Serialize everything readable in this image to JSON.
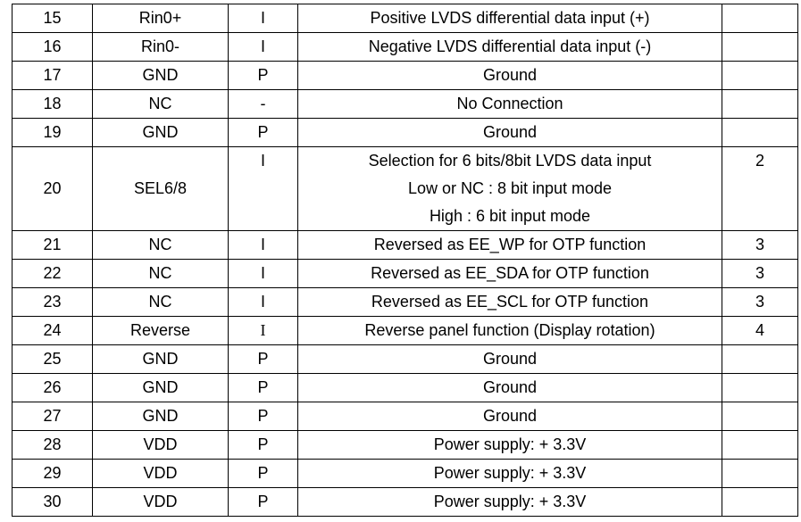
{
  "table": {
    "rows": [
      {
        "pin": "15",
        "name": "Rin0+",
        "type": "I",
        "description": "Positive LVDS differential data input (+)"
      },
      {
        "pin": "16",
        "name": "Rin0-",
        "type": "I",
        "description": "Negative LVDS differential data input (-)"
      },
      {
        "pin": "17",
        "name": "GND",
        "type": "P",
        "description": "Ground"
      },
      {
        "pin": "18",
        "name": "NC",
        "type": "-",
        "description": "No Connection"
      },
      {
        "pin": "19",
        "name": "GND",
        "type": "P",
        "description": "Ground"
      },
      {
        "pin": "20",
        "name": "SEL6/8",
        "type": "I",
        "description": [
          "Selection for 6 bits/8bit LVDS data input",
          "Low or NC : 8 bit input mode",
          "High : 6 bit input mode"
        ],
        "note": "2"
      },
      {
        "pin": "21",
        "name": "NC",
        "type": "I",
        "description": "Reversed as EE_WP for OTP function",
        "note": "3"
      },
      {
        "pin": "22",
        "name": "NC",
        "type": "I",
        "description": "Reversed as EE_SDA for OTP function",
        "note": "3"
      },
      {
        "pin": "23",
        "name": "NC",
        "type": "I",
        "description": "Reversed as EE_SCL for OTP function",
        "note": "3"
      },
      {
        "pin": "24",
        "name": "Reverse",
        "type": "I",
        "description": "Reverse panel function (Display rotation)",
        "note": "4"
      },
      {
        "pin": "25",
        "name": "GND",
        "type": "P",
        "description": "Ground"
      },
      {
        "pin": "26",
        "name": "GND",
        "type": "P",
        "description": "Ground"
      },
      {
        "pin": "27",
        "name": "GND",
        "type": "P",
        "description": "Ground"
      },
      {
        "pin": "28",
        "name": "VDD",
        "type": "P",
        "description": "Power supply: + 3.3V"
      },
      {
        "pin": "29",
        "name": "VDD",
        "type": "P",
        "description": "Power supply: + 3.3V"
      },
      {
        "pin": "30",
        "name": "VDD",
        "type": "P",
        "description": "Power supply: + 3.3V"
      }
    ]
  }
}
